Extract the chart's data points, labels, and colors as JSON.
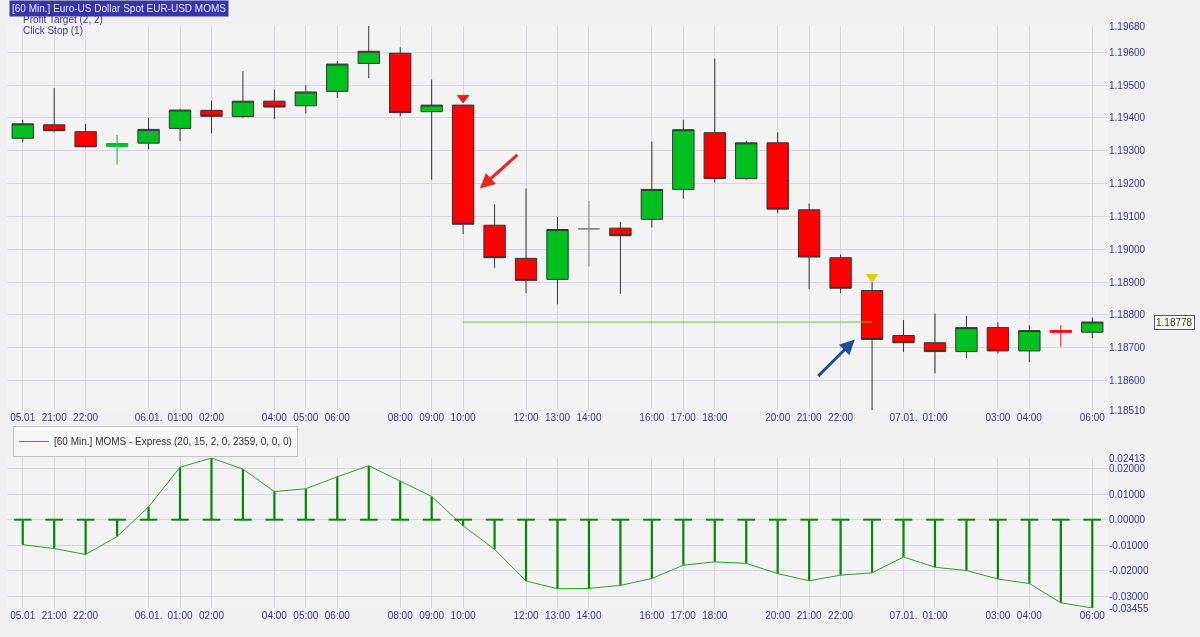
{
  "chart_data": [
    {
      "type": "candlestick",
      "title": "[60 Min.] Euro-US Dollar Spot EUR-USD MOMS",
      "annotations": [
        "Profit Target (2, 2)",
        "Click Stop (1)"
      ],
      "categories": [
        "05.01",
        "21:00",
        "22:00",
        null,
        "06.01.",
        "01:00",
        "02:00",
        null,
        "04:00",
        "05:00",
        "06:00",
        null,
        "08:00",
        "09:00",
        "10:00",
        null,
        "12:00",
        "13:00",
        "14:00",
        null,
        "16:00",
        "17:00",
        "18:00",
        null,
        "20:00",
        "21:00",
        "22:00",
        null,
        "07.01.",
        "01:00",
        null,
        "03:00",
        "04:00",
        null,
        "06:00"
      ],
      "ohlc": [
        [
          1.19338,
          1.19394,
          1.19326,
          1.19382
        ],
        [
          1.19379,
          1.19491,
          1.19356,
          1.19361
        ],
        [
          1.19358,
          1.19382,
          1.1931,
          1.19312
        ],
        [
          1.19313,
          1.19348,
          1.19258,
          1.19322
        ],
        [
          1.19323,
          1.194,
          1.19304,
          1.19365
        ],
        [
          1.19368,
          1.19426,
          1.19329,
          1.19424
        ],
        [
          1.19423,
          1.19453,
          1.19353,
          1.19405
        ],
        [
          1.19404,
          1.19542,
          1.194,
          1.19451
        ],
        [
          1.19451,
          1.19486,
          1.19396,
          1.19433
        ],
        [
          1.19437,
          1.19499,
          1.19414,
          1.19479
        ],
        [
          1.19481,
          1.19573,
          1.19461,
          1.19564
        ],
        [
          1.19566,
          1.1968,
          1.19521,
          1.19603
        ],
        [
          1.19597,
          1.19615,
          1.19405,
          1.19416
        ],
        [
          1.19419,
          1.19517,
          1.19212,
          1.19439
        ],
        [
          1.19439,
          1.19439,
          1.19046,
          1.19076
        ],
        [
          1.19073,
          1.19137,
          1.18943,
          1.18974
        ],
        [
          1.18972,
          1.19185,
          1.18866,
          1.18905
        ],
        [
          1.18908,
          1.19099,
          1.18832,
          1.1906
        ],
        [
          1.19062,
          1.19147,
          1.18947,
          1.19062
        ],
        [
          1.19064,
          1.19083,
          1.18864,
          1.19041
        ],
        [
          1.19091,
          1.19328,
          1.19066,
          1.19182
        ],
        [
          1.19182,
          1.19394,
          1.19154,
          1.19364
        ],
        [
          1.19355,
          1.19581,
          1.19202,
          1.19215
        ],
        [
          1.19215,
          1.1933,
          1.19212,
          1.19324
        ],
        [
          1.19324,
          1.19356,
          1.19109,
          1.19122
        ],
        [
          1.1912,
          1.19139,
          1.18879,
          1.18976
        ],
        [
          1.18974,
          1.18984,
          1.18866,
          1.18881
        ],
        [
          1.18874,
          1.18905,
          1.1851,
          1.18725
        ],
        [
          1.18737,
          1.18784,
          1.18687,
          1.18715
        ],
        [
          1.18715,
          1.18804,
          1.18622,
          1.18688
        ],
        [
          1.18688,
          1.18797,
          1.18668,
          1.18761
        ],
        [
          1.18761,
          1.18778,
          1.18682,
          1.1869
        ],
        [
          1.1869,
          1.18768,
          1.18656,
          1.18752
        ],
        [
          1.18752,
          1.18768,
          1.18702,
          1.18747
        ],
        [
          1.18747,
          1.18792,
          1.18729,
          1.18778
        ]
      ],
      "colors": [
        "#00c020",
        "#ff0000",
        "#ff0000",
        "#00c020",
        "#00c020",
        "#00c020",
        "#ff0000",
        "#00c020",
        "#ff0000",
        "#00c020",
        "#00c020",
        "#00c020",
        "#ff0000",
        "#00c020",
        "#ff0000",
        "#ff0000",
        "#ff0000",
        "#00c020",
        "#808080",
        "#ff0000",
        "#00c020",
        "#00c020",
        "#ff0000",
        "#00c020",
        "#ff0000",
        "#ff0000",
        "#ff0000",
        "#ff0000",
        "#ff0000",
        "#ff0000",
        "#00c020",
        "#ff0000",
        "#00c020",
        "#ff0000",
        "#00c020"
      ],
      "series": [
        {
          "type": "line",
          "name": "1.18778",
          "color": "#66cc33",
          "values": [
            null,
            null,
            null,
            null,
            null,
            null,
            null,
            null,
            null,
            null,
            null,
            null,
            null,
            null,
            1.18778,
            1.18778,
            1.18778,
            1.18778,
            1.18778,
            1.18778,
            1.18778,
            1.18778,
            1.18778,
            1.18778,
            1.18778,
            1.18778,
            1.18778,
            1.18778,
            null,
            null,
            null,
            null,
            null,
            null,
            null
          ]
        },
        {
          "type": "scatter",
          "marker": "triangle",
          "colors": [
            null,
            null,
            null,
            null,
            null,
            null,
            null,
            null,
            null,
            null,
            null,
            null,
            null,
            null,
            "#e02020",
            null,
            null,
            null,
            null,
            null,
            null,
            null,
            null,
            null,
            null,
            null,
            null,
            "#f0c800",
            null,
            null,
            null,
            null,
            null,
            null,
            null
          ],
          "values": [
            null,
            null,
            null,
            null,
            null,
            null,
            null,
            null,
            null,
            null,
            null,
            null,
            null,
            null,
            1.19461,
            null,
            null,
            null,
            null,
            null,
            null,
            null,
            null,
            null,
            null,
            null,
            null,
            1.18915,
            null,
            null,
            null,
            null,
            null,
            null,
            null
          ]
        }
      ],
      "ylim": [
        1.1851,
        1.1968
      ],
      "yticks": [
        {
          "value": 1.1851,
          "label": "1.18510"
        },
        {
          "value": 1.186,
          "label": "1.18600"
        },
        {
          "value": 1.187,
          "label": "1.18700"
        },
        {
          "value": 1.188,
          "label": "1.18800"
        },
        {
          "value": 1.189,
          "label": "1.18900"
        },
        {
          "value": 1.19,
          "label": "1.19000"
        },
        {
          "value": 1.191,
          "label": "1.19100"
        },
        {
          "value": 1.192,
          "label": "1.19200"
        },
        {
          "value": 1.193,
          "label": "1.19300"
        },
        {
          "value": 1.194,
          "label": "1.19400"
        },
        {
          "value": 1.195,
          "label": "1.19500"
        },
        {
          "value": 1.196,
          "label": "1.19600"
        },
        {
          "value": 1.1968,
          "label": "1.19680"
        }
      ],
      "grid": true
    },
    {
      "type": "bar",
      "categories": [
        "05.01",
        "21:00",
        "22:00",
        null,
        "06.01.",
        "01:00",
        "02:00",
        null,
        "04:00",
        "05:00",
        "06:00",
        null,
        "08:00",
        "09:00",
        "10:00",
        null,
        "12:00",
        "13:00",
        "14:00",
        null,
        "16:00",
        "17:00",
        "18:00",
        null,
        "20:00",
        "21:00",
        "22:00",
        null,
        "07.01.",
        "01:00",
        null,
        "03:00",
        "04:00",
        null,
        "06:00"
      ],
      "series": [
        {
          "type": "bar",
          "color": "#008a00",
          "values": [
            -0.0098,
            -0.0113,
            -0.0136,
            -0.0066,
            0.005,
            0.0205,
            0.02413,
            0.0198,
            0.011,
            0.0121,
            0.0168,
            0.0211,
            0.0151,
            0.0091,
            -0.0024,
            -0.0116,
            -0.024,
            -0.027,
            -0.0269,
            -0.0257,
            -0.023,
            -0.0178,
            -0.0165,
            -0.0171,
            -0.0211,
            -0.0239,
            -0.0217,
            -0.0208,
            -0.0146,
            -0.0186,
            -0.0199,
            -0.0232,
            -0.025,
            -0.0325,
            -0.03455
          ]
        },
        {
          "type": "line",
          "name": "[60 Min.] MOMS - Express (20, 15, 2, 0, 2359, 0, 0, 0)",
          "color": "#2e9e2e",
          "values": [
            -0.0098,
            -0.0113,
            -0.0136,
            -0.0066,
            0.005,
            0.0205,
            0.02413,
            0.0198,
            0.011,
            0.0121,
            0.0168,
            0.0211,
            0.0151,
            0.0091,
            -0.0024,
            -0.0116,
            -0.024,
            -0.027,
            -0.0269,
            -0.0257,
            -0.023,
            -0.0178,
            -0.0165,
            -0.0171,
            -0.0211,
            -0.0239,
            -0.0217,
            -0.0208,
            -0.0146,
            -0.0186,
            -0.0199,
            -0.0232,
            -0.025,
            -0.0325,
            -0.03455
          ]
        }
      ],
      "ylim": [
        -0.03455,
        0.02413
      ],
      "yticks": [
        {
          "value": -0.03455,
          "label": "-0.03455"
        },
        {
          "value": -0.03,
          "label": "-0.03000"
        },
        {
          "value": -0.02,
          "label": "-0.02000"
        },
        {
          "value": -0.01,
          "label": "-0.01000"
        },
        {
          "value": 0,
          "label": "0.00000"
        },
        {
          "value": 0.01,
          "label": "0.01000"
        },
        {
          "value": 0.02,
          "label": "0.02000"
        },
        {
          "value": 0.02413,
          "label": "0.02413"
        }
      ],
      "grid": true,
      "legend": "top left"
    }
  ]
}
